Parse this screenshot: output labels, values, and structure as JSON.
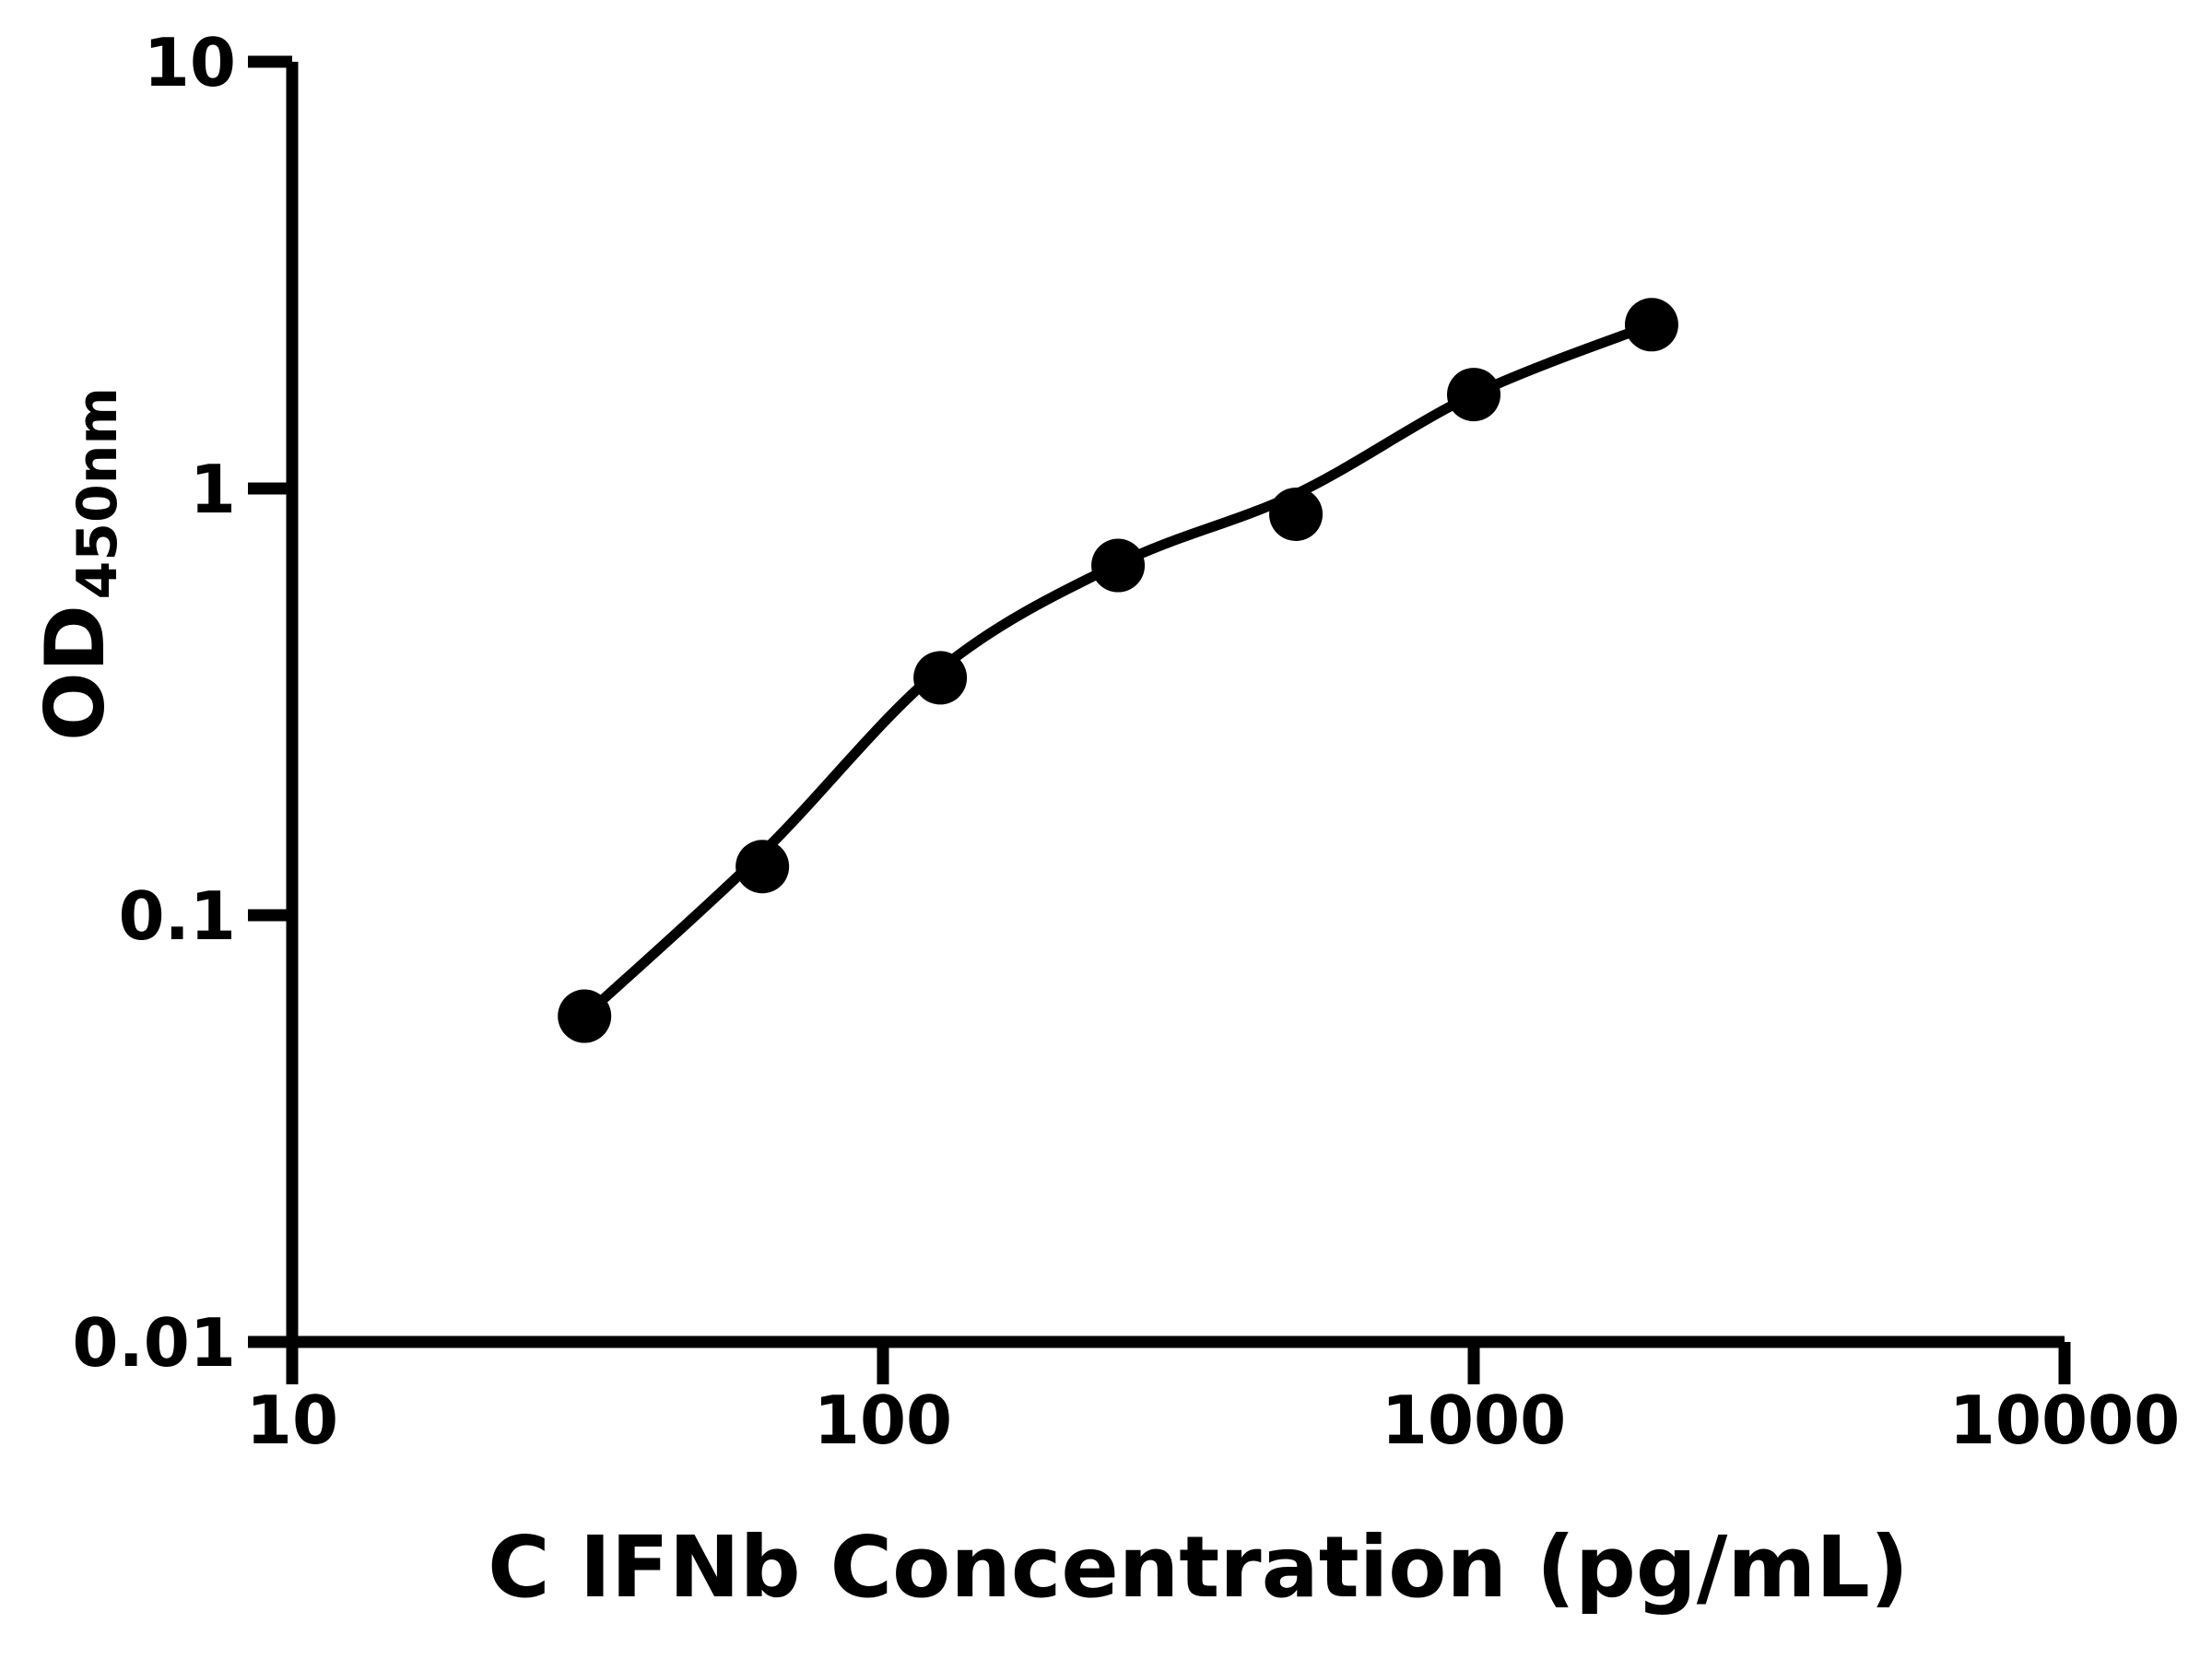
{
  "figure": {
    "background_color": "#ffffff",
    "ink_color": "#000000"
  },
  "chart_data": {
    "type": "scatter",
    "title": "",
    "xlabel": "C IFNb Concentration (pg/mL)",
    "ylabel_main": "OD",
    "ylabel_sub": "450nm",
    "x_scale": "log",
    "y_scale": "log",
    "xlim": [
      10,
      10000
    ],
    "ylim": [
      0.01,
      10
    ],
    "x_ticks": [
      10,
      100,
      1000,
      10000
    ],
    "x_tick_labels": [
      "10",
      "100",
      "1000",
      "10000"
    ],
    "y_ticks": [
      10,
      1,
      0.1,
      0.01
    ],
    "y_tick_labels": [
      "10",
      "1",
      "0.1",
      "0.01"
    ],
    "grid": false,
    "legend": false,
    "series": [
      {
        "name": "standard-points",
        "marker": "circle",
        "marker_color": "#000000",
        "x": [
          31.25,
          62.5,
          125,
          250,
          500,
          1000,
          2000
        ],
        "y": [
          0.058,
          0.13,
          0.36,
          0.66,
          0.87,
          1.66,
          2.42
        ]
      }
    ],
    "fit_curve": {
      "name": "fitted-standard-curve",
      "line_color": "#000000",
      "x": [
        31.25,
        62.5,
        125,
        250,
        500,
        1000,
        2000
      ],
      "y": [
        0.058,
        0.14,
        0.377,
        0.665,
        0.97,
        1.66,
        2.42
      ]
    }
  }
}
